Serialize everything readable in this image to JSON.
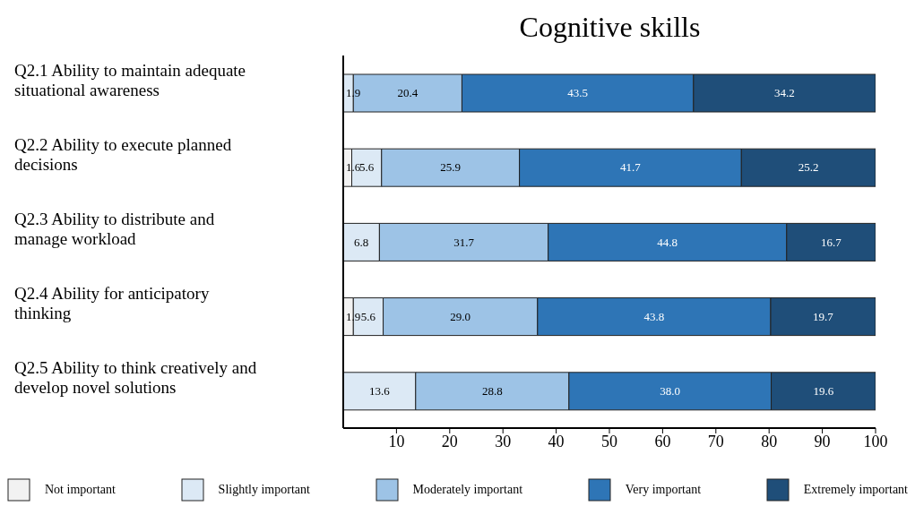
{
  "chart_data": {
    "type": "bar",
    "title": "Cognitive skills",
    "orientation": "horizontal",
    "stacked": true,
    "grid": false,
    "legend": "bottom",
    "categories": [
      "Q2.1 Ability to maintain adequate situational awareness",
      "Q2.2 Ability to execute planned decisions",
      "Q2.3 Ability to distribute and manage workload",
      "Q2.4 Ability for anticipatory thinking",
      "Q2.5 Ability to think creatively and develop novel solutions"
    ],
    "series": [
      {
        "name": "Not important",
        "color": "#f2f2f2",
        "values": [
          null,
          1.6,
          null,
          1.9,
          null
        ],
        "value_labels": [
          null,
          "1.6",
          null,
          "1.9",
          null
        ]
      },
      {
        "name": "Slightly important",
        "color": "#dce9f5",
        "values": [
          1.9,
          5.6,
          6.8,
          5.6,
          13.6
        ],
        "value_labels": [
          "1.9",
          "5.6",
          "6.8",
          "5.6",
          "13.6"
        ]
      },
      {
        "name": "Moderately important",
        "color": "#9dc3e6",
        "values": [
          20.4,
          25.9,
          31.7,
          29.0,
          28.8
        ],
        "value_labels": [
          "20.4",
          "25.9",
          "31.7",
          "29.0",
          "28.8"
        ]
      },
      {
        "name": "Very important",
        "color": "#2e75b6",
        "values": [
          43.5,
          41.7,
          44.8,
          43.8,
          38.0
        ],
        "value_labels": [
          "43.5",
          "41.7",
          "44.8",
          "43.8",
          "38.0"
        ]
      },
      {
        "name": "Extremely important",
        "color": "#1f4e79",
        "values": [
          34.2,
          25.2,
          16.7,
          19.7,
          19.6
        ],
        "value_labels": [
          "34.2",
          "25.2",
          "16.7",
          "19.7",
          "19.6"
        ]
      }
    ],
    "xlim": [
      0,
      100
    ],
    "xticks": [
      10,
      20,
      30,
      40,
      50,
      60,
      70,
      80,
      90,
      100
    ]
  }
}
